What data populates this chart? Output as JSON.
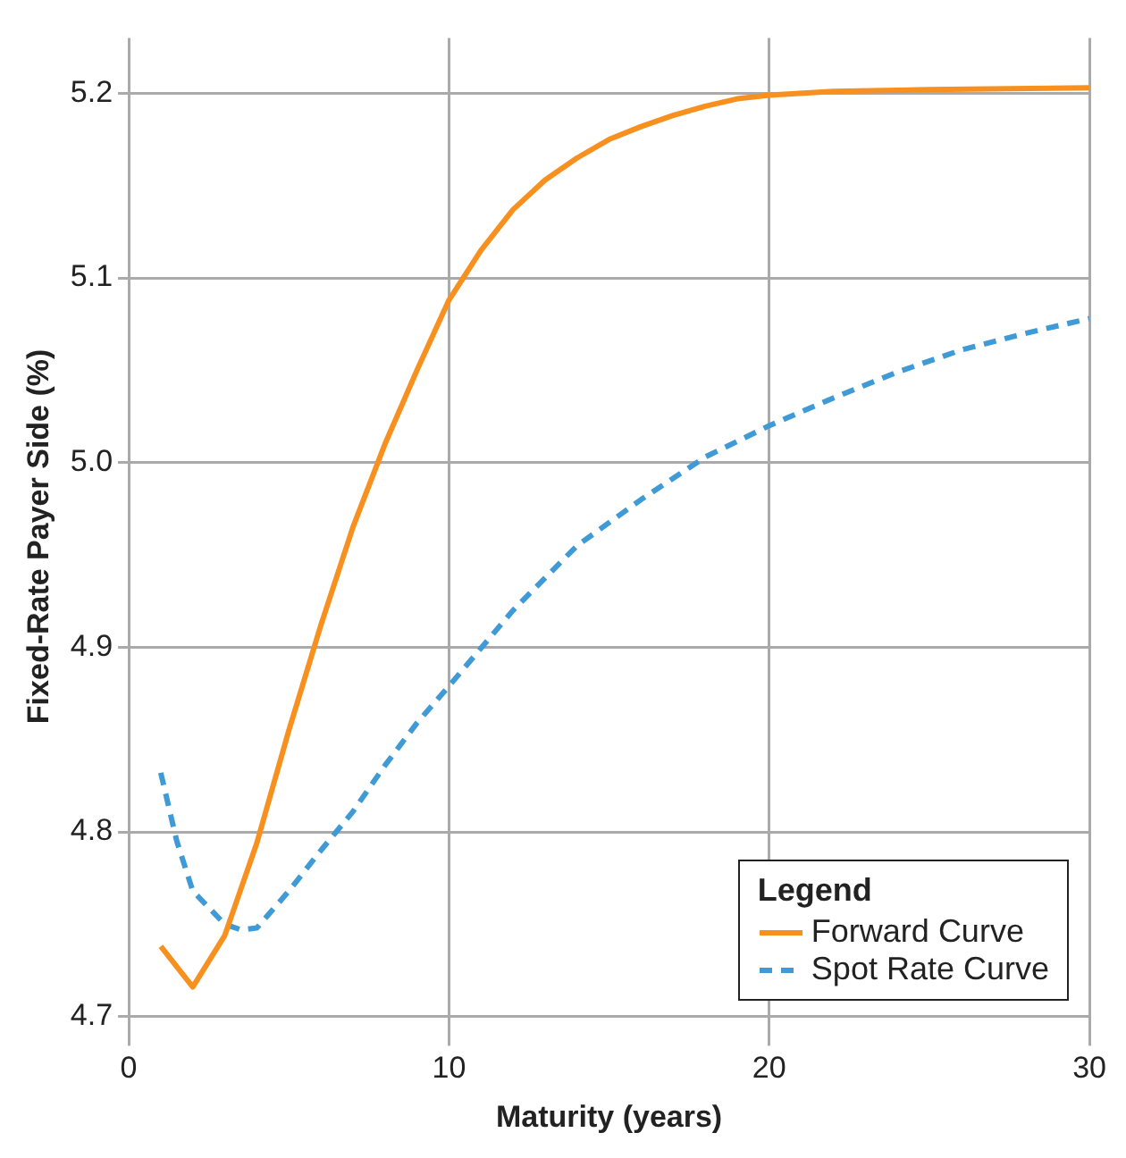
{
  "chart_data": {
    "type": "line",
    "xlabel": "Maturity (years)",
    "ylabel": "Fixed-Rate Payer Side (%)",
    "legend_title": "Legend",
    "xlim": [
      0,
      30
    ],
    "xticks": [
      0,
      10,
      20,
      30
    ],
    "ylim": [
      4.69,
      5.23
    ],
    "yticks": [
      4.7,
      4.8,
      4.9,
      {
        "value": 5,
        "label": "5.0"
      },
      5.1,
      5.2
    ],
    "grid": true,
    "legend": "bottom right",
    "marker": "none",
    "series": [
      {
        "name": "Forward Curve",
        "color": "#f7901e",
        "line_style": "solid",
        "x": [
          1,
          2,
          3,
          4,
          5,
          6,
          7,
          8,
          9,
          10,
          11,
          12,
          13,
          14,
          15,
          16,
          17,
          18,
          19,
          20,
          22,
          25,
          30
        ],
        "values": [
          4.738,
          4.716,
          4.744,
          4.794,
          4.855,
          4.912,
          4.965,
          5.01,
          5.05,
          5.088,
          5.115,
          5.137,
          5.153,
          5.165,
          5.175,
          5.182,
          5.188,
          5.193,
          5.197,
          5.199,
          5.201,
          5.202,
          5.203
        ]
      },
      {
        "name": "Spot Rate Curve",
        "color": "#3f9ad6",
        "line_style": "dashed",
        "x": [
          1,
          1.5,
          2,
          3,
          3.5,
          4,
          5,
          6,
          7,
          8,
          9,
          10,
          12,
          14,
          16,
          18,
          20,
          22,
          24,
          26,
          28,
          30
        ],
        "values": [
          4.832,
          4.795,
          4.768,
          4.75,
          4.747,
          4.748,
          4.768,
          4.79,
          4.811,
          4.836,
          4.859,
          4.879,
          4.92,
          4.955,
          4.98,
          5.003,
          5.02,
          5.035,
          5.049,
          5.061,
          5.07,
          5.078
        ]
      }
    ]
  }
}
